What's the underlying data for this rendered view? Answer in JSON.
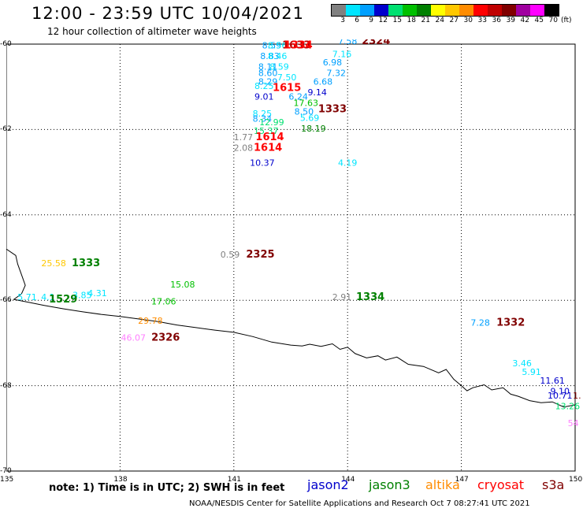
{
  "header": {
    "title": "12:00 - 23:59 UTC 10/04/2021",
    "subtitle": "12 hour collection of altimeter wave heights"
  },
  "legend": {
    "bins": [
      {
        "label": "3",
        "color": "#808080"
      },
      {
        "label": "6",
        "color": "#00e5ff"
      },
      {
        "label": "9",
        "color": "#00a0ff"
      },
      {
        "label": "12",
        "color": "#0000cc"
      },
      {
        "label": "15",
        "color": "#00e070"
      },
      {
        "label": "18",
        "color": "#00c000"
      },
      {
        "label": "21",
        "color": "#008000"
      },
      {
        "label": "24",
        "color": "#ffff00"
      },
      {
        "label": "27",
        "color": "#ffc800"
      },
      {
        "label": "30",
        "color": "#ff8c00"
      },
      {
        "label": "33",
        "color": "#ff0000"
      },
      {
        "label": "36",
        "color": "#c00000"
      },
      {
        "label": "39",
        "color": "#800000"
      },
      {
        "label": "42",
        "color": "#a000a0"
      },
      {
        "label": "45",
        "color": "#ff00ff"
      },
      {
        "label": "70",
        "color": "#000000"
      }
    ],
    "unit": "(ft)"
  },
  "map": {
    "y_ticks": [
      "-60",
      "-62",
      "-64",
      "-66",
      "-68",
      "-70"
    ],
    "x_ticks": [
      "135",
      "138",
      "141",
      "144",
      "147",
      "150"
    ],
    "observations": [
      {
        "v": "8.59",
        "c": "#00a0ff",
        "lon": 142.0,
        "lat": -60.1
      },
      {
        "v": "8.56",
        "c": "#00e5ff",
        "lon": 142.15,
        "lat": -60.1
      },
      {
        "v": "1633",
        "c": "#c00000",
        "lon": 142.65,
        "lat": -60.1
      },
      {
        "v": "1334",
        "c": "#ff0000",
        "lon": 142.7,
        "lat": -60.1
      },
      {
        "v": "7.58",
        "c": "#00a0ff",
        "lon": 144.0,
        "lat": -60.0
      },
      {
        "v": "2324",
        "c": "#800000",
        "lon": 144.75,
        "lat": -60.0
      },
      {
        "v": "7.16",
        "c": "#00e5ff",
        "lon": 143.85,
        "lat": -60.3
      },
      {
        "v": "8.83",
        "c": "#00a0ff",
        "lon": 141.95,
        "lat": -60.35
      },
      {
        "v": "8.46",
        "c": "#00e5ff",
        "lon": 142.15,
        "lat": -60.35
      },
      {
        "v": "6.98",
        "c": "#00a0ff",
        "lon": 143.6,
        "lat": -60.5
      },
      {
        "v": "8.11",
        "c": "#00a0ff",
        "lon": 141.9,
        "lat": -60.6
      },
      {
        "v": "8.59",
        "c": "#00e5ff",
        "lon": 142.2,
        "lat": -60.6
      },
      {
        "v": "8.60",
        "c": "#00a0ff",
        "lon": 141.9,
        "lat": -60.75
      },
      {
        "v": "7.32",
        "c": "#00a0ff",
        "lon": 143.7,
        "lat": -60.75
      },
      {
        "v": "7.50",
        "c": "#00e5ff",
        "lon": 142.4,
        "lat": -60.85
      },
      {
        "v": "8.29",
        "c": "#00a0ff",
        "lon": 141.9,
        "lat": -60.95
      },
      {
        "v": "8.25",
        "c": "#00e5ff",
        "lon": 141.8,
        "lat": -61.05
      },
      {
        "v": "6.68",
        "c": "#00a0ff",
        "lon": 143.35,
        "lat": -60.95
      },
      {
        "v": "1615",
        "c": "#ff0000",
        "lon": 142.4,
        "lat": -61.1
      },
      {
        "v": "9.14",
        "c": "#0000cc",
        "lon": 143.2,
        "lat": -61.2
      },
      {
        "v": "9.01",
        "c": "#0000cc",
        "lon": 141.8,
        "lat": -61.3
      },
      {
        "v": "6.24",
        "c": "#00a0ff",
        "lon": 142.7,
        "lat": -61.3
      },
      {
        "v": "17.63",
        "c": "#00c000",
        "lon": 142.9,
        "lat": -61.45
      },
      {
        "v": "1333",
        "c": "#800000",
        "lon": 143.6,
        "lat": -61.6
      },
      {
        "v": "8.50",
        "c": "#00a0ff",
        "lon": 142.85,
        "lat": -61.65
      },
      {
        "v": "8.25",
        "c": "#00e5ff",
        "lon": 141.75,
        "lat": -61.7
      },
      {
        "v": "8.34",
        "c": "#00a0ff",
        "lon": 141.75,
        "lat": -61.82
      },
      {
        "v": "5.69",
        "c": "#00e5ff",
        "lon": 143.0,
        "lat": -61.8
      },
      {
        "v": "12.99",
        "c": "#00e070",
        "lon": 142.0,
        "lat": -61.9
      },
      {
        "v": "18.19",
        "c": "#008000",
        "lon": 143.1,
        "lat": -62.05
      },
      {
        "v": "15.37",
        "c": "#00e070",
        "lon": 141.85,
        "lat": -62.1
      },
      {
        "v": "1.77",
        "c": "#808080",
        "lon": 141.25,
        "lat": -62.25
      },
      {
        "v": "1614",
        "c": "#ff0000",
        "lon": 141.95,
        "lat": -62.25
      },
      {
        "v": "2.08",
        "c": "#808080",
        "lon": 141.25,
        "lat": -62.5
      },
      {
        "v": "1614",
        "c": "#ff0000",
        "lon": 141.9,
        "lat": -62.5
      },
      {
        "v": "10.37",
        "c": "#0000cc",
        "lon": 141.75,
        "lat": -62.85
      },
      {
        "v": "4.19",
        "c": "#00e5ff",
        "lon": 144.0,
        "lat": -62.85
      },
      {
        "v": "0.59",
        "c": "#808080",
        "lon": 140.9,
        "lat": -65.0
      },
      {
        "v": "2325",
        "c": "#800000",
        "lon": 141.7,
        "lat": -65.0
      },
      {
        "v": "25.58",
        "c": "#ffc800",
        "lon": 136.25,
        "lat": -65.2
      },
      {
        "v": "1333",
        "c": "#008000",
        "lon": 137.1,
        "lat": -65.2
      },
      {
        "v": "15.08",
        "c": "#00c000",
        "lon": 139.65,
        "lat": -65.7
      },
      {
        "v": "4.31",
        "c": "#00e5ff",
        "lon": 137.4,
        "lat": -65.9
      },
      {
        "v": "5.71",
        "c": "#00e5ff",
        "lon": 135.55,
        "lat": -66.0
      },
      {
        "v": "4.1",
        "c": "#00e5ff",
        "lon": 136.1,
        "lat": -66.0
      },
      {
        "v": "3.85",
        "c": "#00e5ff",
        "lon": 137.0,
        "lat": -65.95
      },
      {
        "v": "1529",
        "c": "#008000",
        "lon": 136.5,
        "lat": -66.05
      },
      {
        "v": "2.91",
        "c": "#808080",
        "lon": 143.85,
        "lat": -66.0
      },
      {
        "v": "1334",
        "c": "#008000",
        "lon": 144.6,
        "lat": -66.0
      },
      {
        "v": "17.06",
        "c": "#00c000",
        "lon": 139.15,
        "lat": -66.1
      },
      {
        "v": "29.78",
        "c": "#ff8c00",
        "lon": 138.8,
        "lat": -66.55
      },
      {
        "v": "7.28",
        "c": "#00a0ff",
        "lon": 147.5,
        "lat": -66.6
      },
      {
        "v": "1332",
        "c": "#800000",
        "lon": 148.3,
        "lat": -66.6
      },
      {
        "v": "46.07",
        "c": "#ff80ff",
        "lon": 138.35,
        "lat": -66.95
      },
      {
        "v": "2326",
        "c": "#800000",
        "lon": 139.2,
        "lat": -66.95
      },
      {
        "v": "3.46",
        "c": "#00e5ff",
        "lon": 148.6,
        "lat": -67.55
      },
      {
        "v": "5.91",
        "c": "#00e5ff",
        "lon": 148.85,
        "lat": -67.75
      },
      {
        "v": "11.61",
        "c": "#0000cc",
        "lon": 149.4,
        "lat": -67.95
      },
      {
        "v": "9.10",
        "c": "#0000cc",
        "lon": 149.6,
        "lat": -68.2
      },
      {
        "v": "10.71",
        "c": "#0000cc",
        "lon": 149.6,
        "lat": -68.3
      },
      {
        "v": "1.",
        "c": "#800000",
        "lon": 150.05,
        "lat": -68.3
      },
      {
        "v": "13.26",
        "c": "#00e070",
        "lon": 149.8,
        "lat": -68.55
      },
      {
        "v": "54",
        "c": "#ff80ff",
        "lon": 149.95,
        "lat": -68.95
      }
    ],
    "coastline": [
      [
        135,
        -64.8
      ],
      [
        135.25,
        -64.95
      ],
      [
        135.3,
        -65.15
      ],
      [
        135.4,
        -65.4
      ],
      [
        135.5,
        -65.65
      ],
      [
        135.4,
        -65.85
      ],
      [
        135.2,
        -65.98
      ],
      [
        135.6,
        -66.05
      ],
      [
        136.0,
        -66.12
      ],
      [
        136.5,
        -66.2
      ],
      [
        137.0,
        -66.27
      ],
      [
        137.5,
        -66.33
      ],
      [
        138.0,
        -66.38
      ],
      [
        138.5,
        -66.44
      ],
      [
        139.0,
        -66.5
      ],
      [
        139.5,
        -66.58
      ],
      [
        140.0,
        -66.64
      ],
      [
        140.5,
        -66.7
      ],
      [
        141.0,
        -66.75
      ],
      [
        141.5,
        -66.85
      ],
      [
        142.0,
        -66.98
      ],
      [
        142.5,
        -67.05
      ],
      [
        142.8,
        -67.07
      ],
      [
        143.0,
        -67.03
      ],
      [
        143.3,
        -67.08
      ],
      [
        143.6,
        -67.02
      ],
      [
        143.8,
        -67.15
      ],
      [
        144.0,
        -67.1
      ],
      [
        144.2,
        -67.25
      ],
      [
        144.5,
        -67.35
      ],
      [
        144.8,
        -67.3
      ],
      [
        145.0,
        -67.4
      ],
      [
        145.3,
        -67.33
      ],
      [
        145.6,
        -67.5
      ],
      [
        146.0,
        -67.55
      ],
      [
        146.4,
        -67.7
      ],
      [
        146.6,
        -67.62
      ],
      [
        146.8,
        -67.85
      ],
      [
        147.0,
        -68.0
      ],
      [
        147.15,
        -68.12
      ],
      [
        147.3,
        -68.05
      ],
      [
        147.6,
        -67.98
      ],
      [
        147.8,
        -68.1
      ],
      [
        148.1,
        -68.05
      ],
      [
        148.3,
        -68.2
      ],
      [
        148.5,
        -68.25
      ],
      [
        148.8,
        -68.35
      ],
      [
        149.1,
        -68.4
      ],
      [
        149.4,
        -68.38
      ],
      [
        149.7,
        -68.5
      ],
      [
        150,
        -68.45
      ]
    ]
  },
  "note": "note:  1) Time is in UTC;  2) SWH is in feet",
  "satellites": [
    {
      "name": "jason2",
      "color": "#0000cc"
    },
    {
      "name": "jason3",
      "color": "#008000"
    },
    {
      "name": "altika",
      "color": "#ff8c00"
    },
    {
      "name": "cryosat",
      "color": "#ff0000"
    },
    {
      "name": "s3a",
      "color": "#800000"
    }
  ],
  "footer": "NOAA/NESDIS Center for Satellite Applications and Research    Oct  7 08:27:41 UTC 2021"
}
